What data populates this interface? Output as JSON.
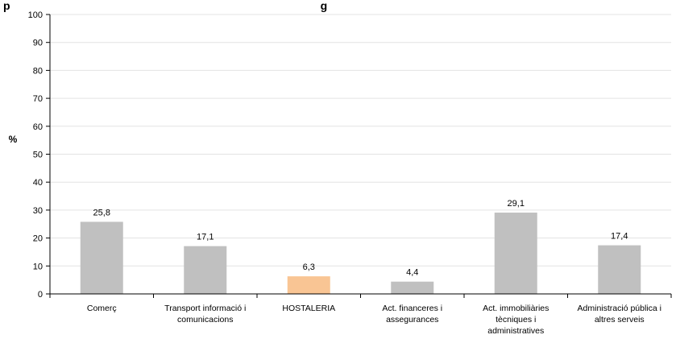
{
  "chart_data": {
    "type": "bar",
    "title": "p                                                                                                   g",
    "ylabel": "%",
    "xlabel": "",
    "ylim": [
      0,
      100
    ],
    "yticks": [
      0,
      10,
      20,
      30,
      40,
      50,
      60,
      70,
      80,
      90,
      100
    ],
    "grid": true,
    "categories": [
      [
        "Comerç"
      ],
      [
        "Transport informació i",
        "comunicacions"
      ],
      [
        "HOSTALERIA"
      ],
      [
        "Act. financeres i",
        "assegurances"
      ],
      [
        "Act. immobiliàries",
        "tècniques i",
        "administratives"
      ],
      [
        "Administració pública i",
        "altres serveis"
      ]
    ],
    "values": [
      25.8,
      17.1,
      6.3,
      4.4,
      29.1,
      17.4
    ],
    "value_labels": [
      "25,8",
      "17,1",
      "6,3",
      "4,4",
      "29,1",
      "17,4"
    ],
    "highlight_index": 2,
    "colors": {
      "bar": "#c0c0c0",
      "highlight": "#f9c594",
      "grid": "#e3e3e3",
      "axis": "#000000"
    }
  }
}
